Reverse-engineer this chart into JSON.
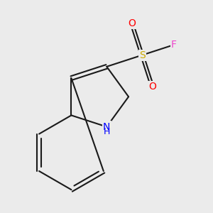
{
  "background_color": "#ebebeb",
  "bond_color": "#1a1a1a",
  "bond_width": 1.5,
  "atom_colors": {
    "N": "#0000ff",
    "O": "#ff0000",
    "S": "#ccaa00",
    "F": "#ee44cc",
    "C": "#1a1a1a"
  },
  "font_size_atoms": 10,
  "dbo": 0.055
}
